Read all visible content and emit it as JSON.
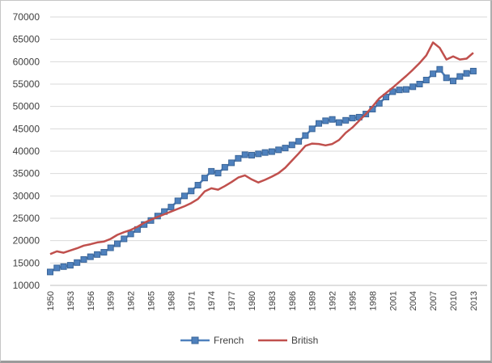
{
  "chart_data": {
    "type": "line",
    "title": "",
    "xlabel": "",
    "ylabel": "",
    "ylim": [
      10000,
      70000
    ],
    "y_step": 5000,
    "x_tick_step": 3,
    "grid": true,
    "legend_position": "bottom-center",
    "years": [
      1950,
      1951,
      1952,
      1953,
      1954,
      1955,
      1956,
      1957,
      1958,
      1959,
      1960,
      1961,
      1962,
      1963,
      1964,
      1965,
      1966,
      1967,
      1968,
      1969,
      1970,
      1971,
      1972,
      1973,
      1974,
      1975,
      1976,
      1977,
      1978,
      1979,
      1980,
      1981,
      1982,
      1983,
      1984,
      1985,
      1986,
      1987,
      1988,
      1989,
      1990,
      1991,
      1992,
      1993,
      1994,
      1995,
      1996,
      1997,
      1998,
      1999,
      2000,
      2001,
      2002,
      2003,
      2004,
      2005,
      2006,
      2007,
      2008,
      2009,
      2010,
      2011,
      2012,
      2013
    ],
    "series": [
      {
        "name": "French",
        "color": "#4F81BD",
        "marker": "square",
        "marker_edge_color": "#3A6598",
        "values": [
          13000,
          13900,
          14200,
          14500,
          15100,
          15800,
          16400,
          16900,
          17400,
          18400,
          19300,
          20400,
          21500,
          22500,
          23600,
          24500,
          25500,
          26500,
          27500,
          28900,
          30000,
          31100,
          32400,
          34000,
          35500,
          35100,
          36400,
          37400,
          38400,
          39200,
          39100,
          39400,
          39700,
          39900,
          40300,
          40700,
          41400,
          42200,
          43500,
          45000,
          46200,
          46800,
          47100,
          46400,
          46900,
          47400,
          47600,
          48300,
          49400,
          50700,
          52100,
          53300,
          53700,
          53800,
          54400,
          55000,
          55900,
          57300,
          58300,
          56400,
          55700,
          56700,
          57400,
          57900
        ]
      },
      {
        "name": "British",
        "color": "#C0504D",
        "marker": "none",
        "values": [
          17000,
          17600,
          17300,
          17800,
          18300,
          18900,
          19200,
          19600,
          19800,
          20400,
          21300,
          21900,
          22400,
          23100,
          24000,
          24700,
          25300,
          25900,
          26500,
          27100,
          27700,
          28400,
          29300,
          31000,
          31700,
          31400,
          32200,
          33100,
          34100,
          34600,
          33700,
          33000,
          33600,
          34300,
          35100,
          36300,
          37900,
          39500,
          41200,
          41700,
          41600,
          41300,
          41600,
          42500,
          44100,
          45300,
          46800,
          48300,
          50000,
          51800,
          53000,
          54200,
          55500,
          56800,
          58200,
          59700,
          61400,
          64300,
          63100,
          60500,
          61200,
          60500,
          60700,
          62000
        ]
      }
    ]
  },
  "colors": {
    "background": "#FFFFFF",
    "gridline": "#D9D9D9",
    "axis_line": "#BFBFBF",
    "text": "#404040",
    "frame_border": "#C6C6C6"
  }
}
